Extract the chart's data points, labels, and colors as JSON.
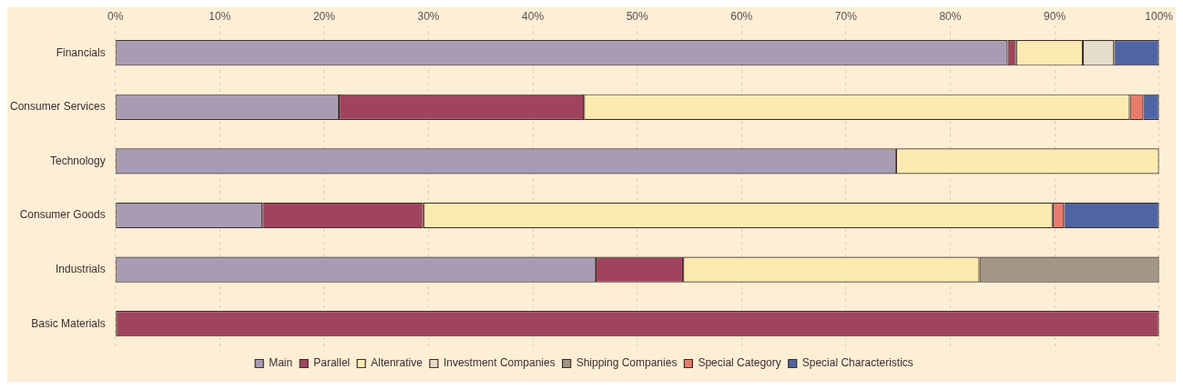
{
  "chart_data": {
    "type": "bar",
    "orientation": "horizontal",
    "stacked": true,
    "categories": [
      "Financials",
      "Consumer Services",
      "Technology",
      "Consumer Goods",
      "Industrials",
      "Basic Materials"
    ],
    "series": [
      {
        "name": "Main",
        "color": "#a89cb4",
        "values": [
          85.5,
          21.4,
          74.8,
          14.1,
          46.0,
          0
        ]
      },
      {
        "name": "Parallel",
        "color": "#a0445e",
        "values": [
          0.8,
          23.5,
          0,
          15.4,
          8.4,
          100
        ]
      },
      {
        "name": "Altenrative",
        "color": "#fcebb0",
        "values": [
          6.4,
          52.3,
          25.2,
          60.3,
          28.4,
          0
        ]
      },
      {
        "name": "Investment Companies",
        "color": "#e6dccb",
        "values": [
          3.0,
          0,
          0,
          0,
          0,
          0
        ]
      },
      {
        "name": "Shipping Companies",
        "color": "#a39685",
        "values": [
          0,
          0,
          0,
          0,
          17.2,
          0
        ]
      },
      {
        "name": "Special Category",
        "color": "#e87c6c",
        "values": [
          0,
          1.3,
          0,
          1.1,
          0,
          0
        ]
      },
      {
        "name": "Special Characteristics",
        "color": "#4f65a3",
        "values": [
          4.3,
          1.5,
          0,
          9.1,
          0,
          0
        ]
      }
    ],
    "xlim": [
      0,
      100
    ],
    "xticks": [
      {
        "value": 0,
        "label": "0%"
      },
      {
        "value": 10,
        "label": "10%"
      },
      {
        "value": 20,
        "label": "20%"
      },
      {
        "value": 30,
        "label": "30%"
      },
      {
        "value": 40,
        "label": "40%"
      },
      {
        "value": 50,
        "label": "50%"
      },
      {
        "value": 60,
        "label": "60%"
      },
      {
        "value": 70,
        "label": "70%"
      },
      {
        "value": 80,
        "label": "80%"
      },
      {
        "value": 90,
        "label": "90%"
      },
      {
        "value": 100,
        "label": "100%"
      }
    ],
    "grid": "x",
    "legend": "bottom"
  }
}
